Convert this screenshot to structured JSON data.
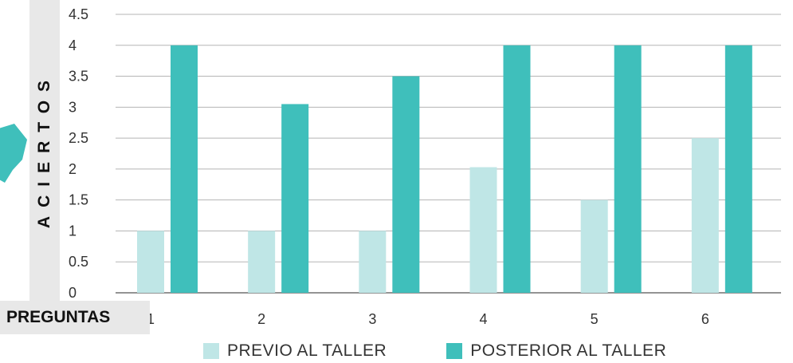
{
  "chart_data": {
    "type": "bar",
    "title": "",
    "xlabel": "PREGUNTAS",
    "ylabel": "ACIERTOS",
    "categories": [
      "1",
      "2",
      "3",
      "4",
      "5",
      "6"
    ],
    "series": [
      {
        "name": "PREVIO AL TALLER",
        "color": "#bfe6e6",
        "values": [
          1.0,
          1.0,
          1.0,
          2.03,
          1.5,
          2.5
        ]
      },
      {
        "name": "POSTERIOR AL TALLER",
        "color": "#3fbfbb",
        "values": [
          4.0,
          3.05,
          3.5,
          4.0,
          4.0,
          4.0
        ]
      }
    ],
    "ylim": [
      0,
      4.5
    ],
    "yticks": [
      "0",
      "0.5",
      "1",
      "1.5",
      "2",
      "2.5",
      "3",
      "3.5",
      "4",
      "4.5"
    ],
    "grid": true,
    "legend_position": "bottom"
  }
}
